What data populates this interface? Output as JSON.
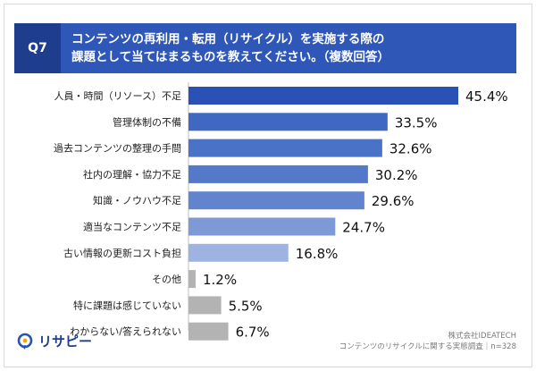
{
  "header": {
    "q_label": "Q7",
    "title_line1": "コンテンツの再利用・転用（リサイクル）を実施する際の",
    "title_line2": "課題として当てはまるものを教えてください。（複数回答）"
  },
  "chart_data": {
    "type": "bar",
    "orientation": "horizontal",
    "categories": [
      "人員・時間（リソース）不足",
      "管理体制の不備",
      "過去コンテンツの整理の手間",
      "社内の理解・協力不足",
      "知識・ノウハウ不足",
      "適当なコンテンツ不足",
      "古い情報の更新コスト負担",
      "その他",
      "特に課題は感じていない",
      "わからない/答えられない"
    ],
    "values": [
      45.4,
      33.5,
      32.6,
      30.2,
      29.6,
      24.7,
      16.8,
      1.2,
      5.5,
      6.7
    ],
    "value_labels": [
      "45.4%",
      "33.5%",
      "32.6%",
      "30.2%",
      "29.6%",
      "24.7%",
      "16.8%",
      "1.2%",
      "5.5%",
      "6.7%"
    ],
    "bar_colors": [
      "#2a52b6",
      "#4068c2",
      "#4a72c7",
      "#5579c9",
      "#6283cd",
      "#7e9ad6",
      "#9eb3e1",
      "#b3b3b3",
      "#b3b3b3",
      "#b3b3b3"
    ],
    "xlim": [
      0,
      50
    ]
  },
  "footer": {
    "company": "株式会社IDEATECH",
    "survey": "コンテンツのリサイクルに関する実態調査｜n=328"
  },
  "logo": {
    "text": "リサピー"
  }
}
